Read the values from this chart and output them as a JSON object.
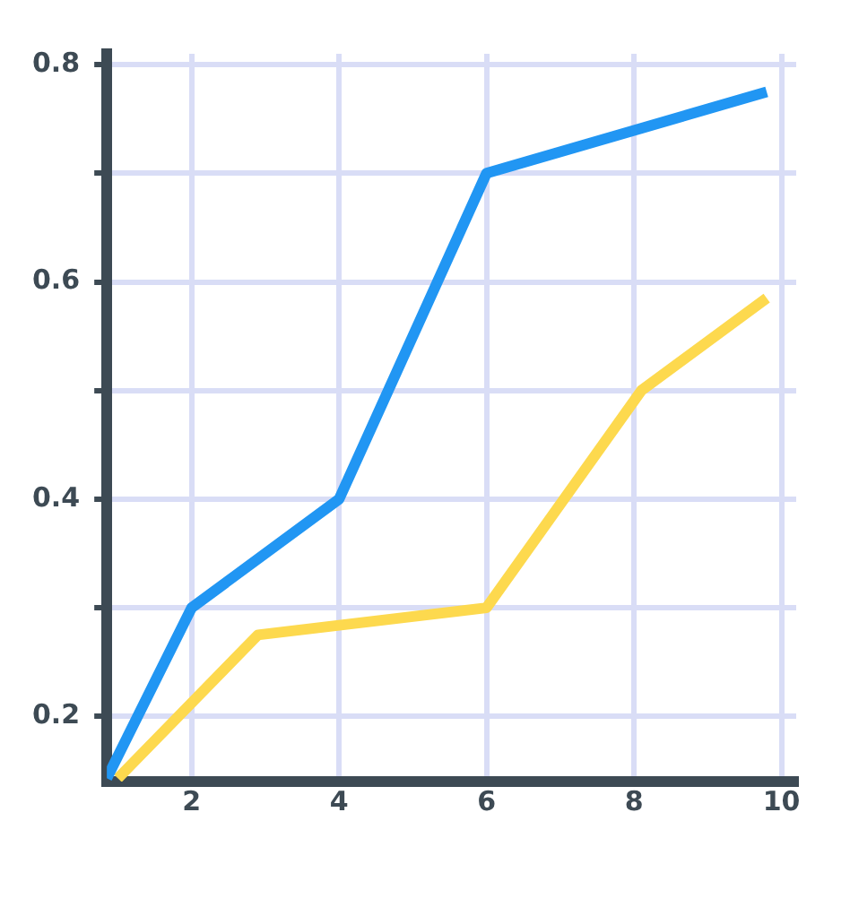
{
  "chart_data": {
    "type": "line",
    "xlim": [
      0.85,
      10.2
    ],
    "ylim": [
      0.14,
      0.81
    ],
    "xticks": [
      2,
      4,
      6,
      8,
      10
    ],
    "yticks": [
      0.2,
      {
        "value": 0.3,
        "label": null
      },
      0.4,
      {
        "value": 0.5,
        "label": null
      },
      0.6,
      {
        "value": 0.7,
        "label": null
      },
      0.8
    ],
    "grid": true,
    "marker": "none",
    "line_style": "solid",
    "legend": false,
    "series": [
      {
        "color": "#2196f3",
        "x": [
          0.85,
          2,
          4,
          6,
          9.8
        ],
        "values": [
          0.143,
          0.3,
          0.4,
          0.7,
          0.775
        ]
      },
      {
        "color": "#fdd94e",
        "x": [
          1,
          2.9,
          6,
          8.1,
          9.8
        ],
        "values": [
          0.143,
          0.275,
          0.3,
          0.5,
          0.585
        ]
      }
    ]
  }
}
